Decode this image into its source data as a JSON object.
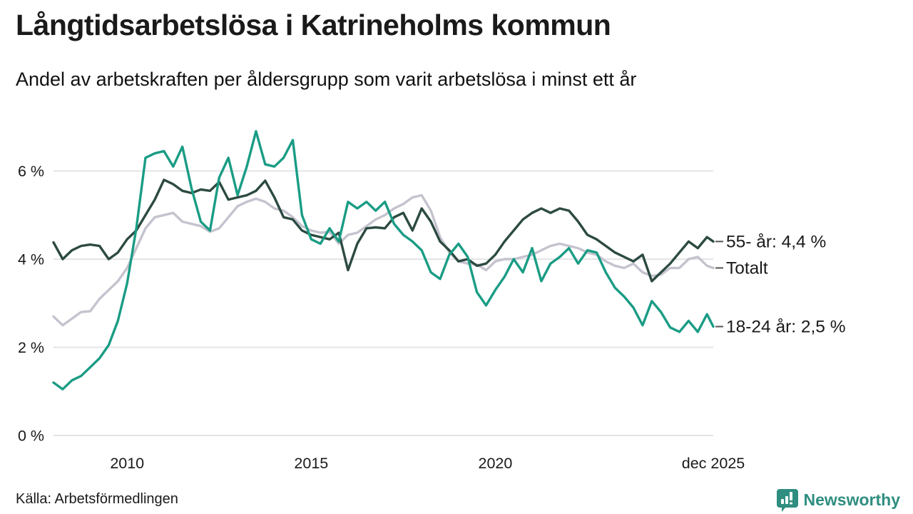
{
  "header": {
    "title": "Långtidsarbetslösa i Katrineholms kommun",
    "subtitle": "Andel av arbetskraften per åldersgrupp som varit arbetslösa i minst ett år"
  },
  "footer": {
    "source": "Källa: Arbetsförmedlingen",
    "brand": "Newsworthy"
  },
  "colors": {
    "accent_teal": "#1a9c85",
    "dark_green": "#2c4a41",
    "light_gray": "#c4c3ce",
    "grid": "#e4e4e8",
    "text": "#1a1a1a",
    "leader": "#555555",
    "brand_teal": "#2f8e80"
  },
  "chart_data": {
    "type": "line",
    "title": "Långtidsarbetslösa i Katrineholms kommun",
    "subtitle": "Andel av arbetskraften per åldersgrupp som varit arbetslösa i minst ett år",
    "unit": "% av arbetskraften",
    "grid": "horizontal",
    "legend_position": "right-edge-annotations",
    "x_range": [
      2008.0,
      2025.92
    ],
    "y_range": [
      0,
      7.2
    ],
    "x_axis": [
      {
        "year": 2010,
        "label": "2010"
      },
      {
        "year": 2015,
        "label": "2015"
      },
      {
        "year": 2020,
        "label": "2020"
      },
      {
        "year": 2025.92,
        "label": "dec 2025"
      }
    ],
    "y_axis": [
      {
        "value": 0,
        "label": "0 %"
      },
      {
        "value": 2,
        "label": "2 %"
      },
      {
        "value": 4,
        "label": "4 %"
      },
      {
        "value": 6,
        "label": "6 %"
      }
    ],
    "draw_order": [
      1,
      0,
      2
    ],
    "x": [
      2008.0,
      2008.25,
      2008.5,
      2008.75,
      2009.0,
      2009.25,
      2009.5,
      2009.75,
      2010.0,
      2010.25,
      2010.5,
      2010.75,
      2011.0,
      2011.25,
      2011.5,
      2011.75,
      2012.0,
      2012.25,
      2012.5,
      2012.75,
      2013.0,
      2013.25,
      2013.5,
      2013.75,
      2014.0,
      2014.25,
      2014.5,
      2014.75,
      2015.0,
      2015.25,
      2015.5,
      2015.75,
      2016.0,
      2016.25,
      2016.5,
      2016.75,
      2017.0,
      2017.25,
      2017.5,
      2017.75,
      2018.0,
      2018.25,
      2018.5,
      2018.75,
      2019.0,
      2019.25,
      2019.5,
      2019.75,
      2020.0,
      2020.25,
      2020.5,
      2020.75,
      2021.0,
      2021.25,
      2021.5,
      2021.75,
      2022.0,
      2022.25,
      2022.5,
      2022.75,
      2023.0,
      2023.25,
      2023.5,
      2023.75,
      2024.0,
      2024.25,
      2024.5,
      2024.75,
      2025.0,
      2025.25,
      2025.5,
      2025.75,
      2025.92
    ],
    "series": [
      {
        "name": "55- år",
        "label": "55- år: 4,4 %",
        "end_value_display": "4,4 %",
        "color": "#2c4a41",
        "values": [
          4.38,
          4.0,
          4.2,
          4.3,
          4.33,
          4.3,
          4.0,
          4.15,
          4.45,
          4.65,
          5.0,
          5.35,
          5.8,
          5.7,
          5.55,
          5.5,
          5.58,
          5.55,
          5.75,
          5.35,
          5.4,
          5.45,
          5.55,
          5.78,
          5.4,
          4.95,
          4.9,
          4.65,
          4.55,
          4.5,
          4.45,
          4.6,
          3.75,
          4.35,
          4.7,
          4.72,
          4.7,
          4.95,
          5.05,
          4.65,
          5.15,
          4.85,
          4.4,
          4.2,
          3.95,
          4.0,
          3.85,
          3.9,
          4.1,
          4.4,
          4.65,
          4.9,
          5.05,
          5.15,
          5.05,
          5.15,
          5.1,
          4.85,
          4.55,
          4.45,
          4.3,
          4.15,
          4.05,
          3.95,
          4.1,
          3.5,
          3.7,
          3.9,
          4.15,
          4.4,
          4.25,
          4.5,
          4.4
        ]
      },
      {
        "name": "Totalt",
        "label": "Totalt",
        "end_value_display": "",
        "color": "#c4c3ce",
        "values": [
          2.7,
          2.5,
          2.65,
          2.8,
          2.82,
          3.1,
          3.3,
          3.5,
          3.8,
          4.25,
          4.7,
          4.95,
          5.0,
          5.05,
          4.85,
          4.8,
          4.75,
          4.62,
          4.7,
          4.95,
          5.2,
          5.3,
          5.37,
          5.3,
          5.15,
          5.1,
          4.95,
          4.75,
          4.65,
          4.6,
          4.62,
          4.35,
          4.55,
          4.6,
          4.75,
          4.9,
          5.0,
          5.15,
          5.25,
          5.4,
          5.45,
          5.1,
          4.5,
          4.15,
          3.95,
          3.9,
          3.88,
          3.75,
          3.95,
          4.0,
          4.0,
          4.05,
          4.1,
          4.2,
          4.3,
          4.35,
          4.3,
          4.25,
          4.15,
          4.1,
          3.95,
          3.85,
          3.8,
          3.9,
          3.7,
          3.62,
          3.65,
          3.8,
          3.8,
          4.0,
          4.05,
          3.85,
          3.8
        ]
      },
      {
        "name": "18-24 år",
        "label": "18-24 år: 2,5 %",
        "end_value_display": "2,5 %",
        "color": "#1a9c85",
        "values": [
          1.2,
          1.05,
          1.25,
          1.35,
          1.55,
          1.75,
          2.05,
          2.6,
          3.45,
          4.7,
          6.3,
          6.4,
          6.45,
          6.1,
          6.55,
          5.6,
          4.85,
          4.65,
          5.85,
          6.3,
          5.45,
          6.1,
          6.9,
          6.15,
          6.1,
          6.3,
          6.7,
          5.0,
          4.45,
          4.35,
          4.7,
          4.4,
          5.3,
          5.15,
          5.3,
          5.1,
          5.3,
          4.8,
          4.55,
          4.4,
          4.2,
          3.7,
          3.55,
          4.1,
          4.35,
          4.05,
          3.25,
          2.95,
          3.3,
          3.6,
          4.0,
          3.7,
          4.25,
          3.5,
          3.9,
          4.05,
          4.25,
          3.9,
          4.2,
          4.15,
          3.7,
          3.35,
          3.15,
          2.9,
          2.5,
          3.05,
          2.8,
          2.45,
          2.35,
          2.6,
          2.35,
          2.75,
          2.47
        ]
      }
    ]
  }
}
